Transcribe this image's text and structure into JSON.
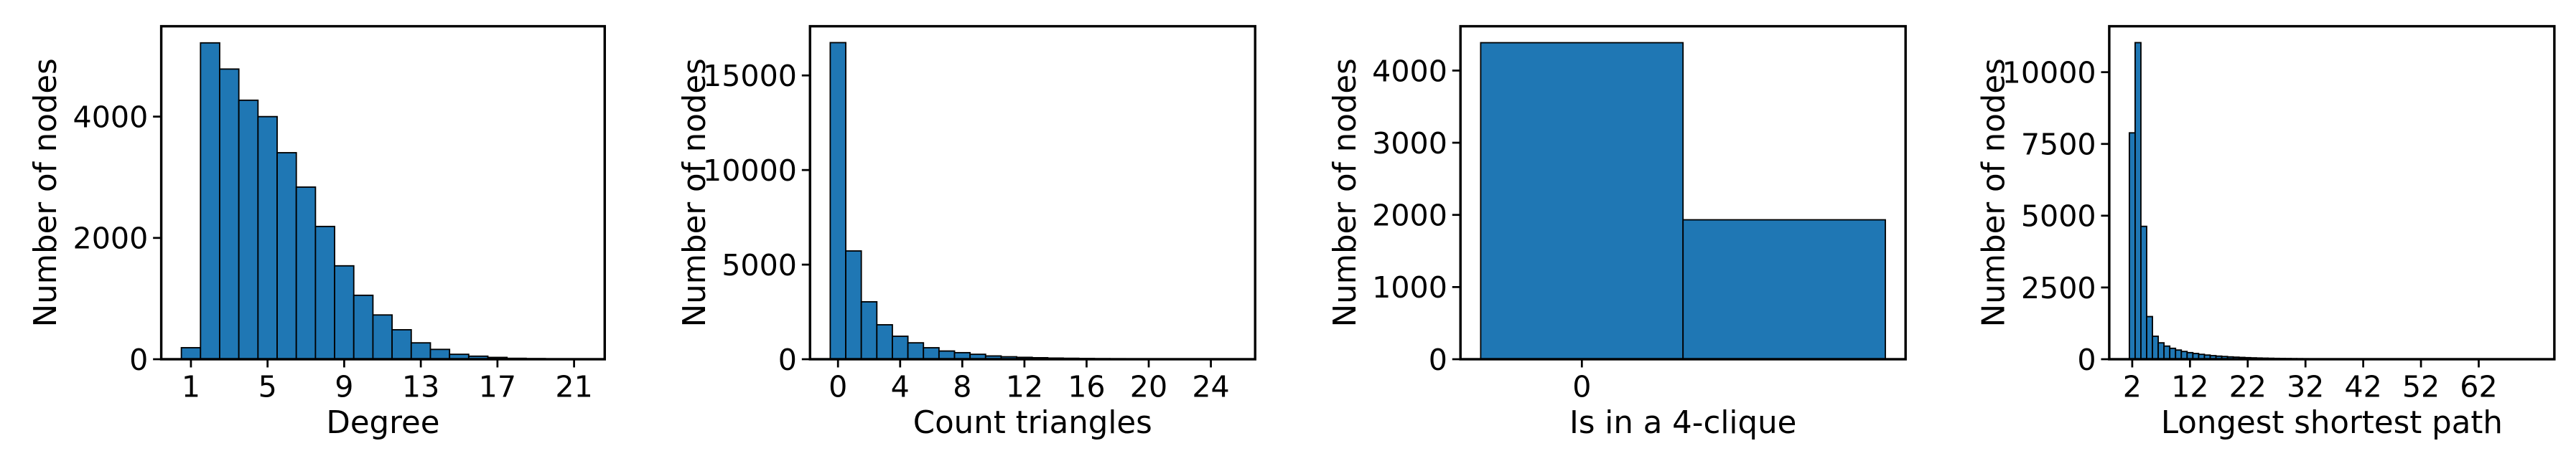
{
  "chart_data": [
    {
      "type": "histogram",
      "xlabel": "Degree",
      "ylabel": "Number of nodes",
      "color": "#1f77b4",
      "bins": [
        0.5,
        1.5,
        2.5,
        3.5,
        4.5,
        5.5,
        6.5,
        7.5,
        8.5,
        9.5,
        10.5,
        11.5,
        12.5,
        13.5,
        14.5,
        15.5,
        16.5,
        17.5,
        18.5,
        19.5,
        20.5,
        21.5
      ],
      "counts": [
        190,
        5216,
        4784,
        4270,
        4000,
        3405,
        2838,
        2189,
        1540,
        1054,
        730,
        486,
        270,
        162,
        81,
        50,
        30,
        15,
        10,
        5,
        3
      ],
      "xlim": [
        -0.55,
        22.6
      ],
      "ylim": [
        0,
        5490
      ],
      "xticks": [
        1,
        5,
        9,
        13,
        17,
        21
      ],
      "yticks": [
        0,
        2000,
        4000
      ]
    },
    {
      "type": "histogram",
      "xlabel": "Count triangles",
      "ylabel": "Number of nodes",
      "color": "#1f77b4",
      "bins": [
        -0.5,
        0.5,
        1.5,
        2.5,
        3.5,
        4.5,
        5.5,
        6.5,
        7.5,
        8.5,
        9.5,
        10.5,
        11.5,
        12.5,
        13.5,
        14.5,
        15.5,
        16.5,
        17.5,
        18.5,
        19.5,
        20.5,
        21.5,
        22.5,
        23.5,
        24.5,
        25.5
      ],
      "counts": [
        16734,
        5723,
        3035,
        1821,
        1214,
        867,
        607,
        434,
        347,
        260,
        173,
        130,
        100,
        80,
        60,
        50,
        40,
        30,
        25,
        20,
        15,
        12,
        10,
        8,
        6,
        5
      ],
      "xlim": [
        -1.8,
        26.85
      ],
      "ylim": [
        0,
        17600
      ],
      "xticks": [
        0,
        4,
        8,
        12,
        16,
        20,
        24
      ],
      "yticks": [
        0,
        5000,
        10000,
        15000
      ]
    },
    {
      "type": "histogram",
      "xlabel": "Is in a 4-clique",
      "ylabel": "Number of nodes",
      "color": "#1f77b4",
      "bins": [
        -0.5,
        0.5,
        1.5
      ],
      "counts": [
        4386,
        1932
      ],
      "xlim": [
        -0.6,
        1.6
      ],
      "ylim": [
        0,
        4614
      ],
      "xticks": [
        0
      ],
      "yticks": [
        0,
        1000,
        2000,
        3000,
        4000
      ]
    },
    {
      "type": "histogram",
      "xlabel": "Longest shortest path",
      "ylabel": "Number of nodes",
      "color": "#1f77b4",
      "bins": [
        1.5,
        2.5,
        3.5,
        4.5,
        5.5,
        6.5,
        7.5,
        8.5,
        9.5,
        10.5,
        11.5,
        12.5,
        13.5,
        14.5,
        15.5,
        16.5,
        17.5,
        18.5,
        19.5,
        20.5,
        21.5,
        22.5,
        23.5,
        24.5,
        25.5,
        26.5,
        27.5,
        28.5,
        29.5,
        30.5,
        31.5,
        32.5,
        33.5,
        34.5,
        35.5,
        36.5,
        37.5,
        38.5,
        39.5,
        40.5,
        41.5,
        42.5,
        43.5,
        44.5,
        45.5,
        46.5,
        47.5,
        48.5,
        49.5,
        50.5,
        51.5,
        52.5,
        53.5,
        54.5,
        55.5,
        56.5,
        57.5,
        58.5,
        59.5,
        60.5,
        61.5,
        62.5,
        63.5,
        64.5,
        65.5,
        66.5,
        67.5,
        68.5,
        69.5,
        70.5,
        71.5
      ],
      "counts": [
        7886,
        11029,
        4629,
        1486,
        800,
        571,
        457,
        380,
        320,
        270,
        230,
        200,
        170,
        145,
        125,
        108,
        95,
        82,
        72,
        63,
        55,
        48,
        42,
        37,
        33,
        29,
        26,
        23,
        20,
        18,
        16,
        14,
        12,
        11,
        10,
        9,
        8,
        7,
        6,
        6,
        5,
        5,
        4,
        4,
        3,
        3,
        3,
        2,
        2,
        2,
        2,
        2,
        1,
        1,
        1,
        1,
        1,
        1,
        1,
        1,
        1,
        1,
        1,
        1,
        1,
        1,
        1,
        1,
        1,
        1
      ],
      "xlim": [
        -1.98,
        75.1
      ],
      "ylim": [
        0,
        11600
      ],
      "xticks": [
        2,
        12,
        22,
        32,
        42,
        52,
        62
      ],
      "yticks": [
        0,
        2500,
        5000,
        7500,
        10000
      ]
    }
  ]
}
